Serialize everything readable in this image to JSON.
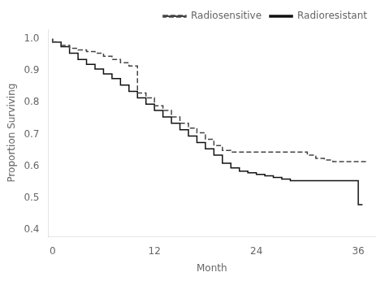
{
  "chart_data": {
    "type": "step",
    "xlabel": "Month",
    "ylabel": "Proportion Surviving",
    "xlim": [
      -0.5,
      38
    ],
    "ylim": [
      0.38,
      1.03
    ],
    "xticks": [
      0,
      12,
      24,
      36
    ],
    "yticks": [
      0.4,
      0.5,
      0.6,
      0.7,
      0.8,
      0.9,
      {
        "value": 1.0,
        "label": "1.0"
      }
    ],
    "grid": false,
    "legend": "upper right",
    "series": [
      {
        "name": "Radiosensitive",
        "color": "#444444",
        "line_style": "dashed",
        "x": [
          0,
          1,
          2,
          3,
          4,
          5,
          6,
          7,
          8,
          9,
          10,
          11,
          12,
          13,
          14,
          15,
          16,
          17,
          18,
          19,
          20,
          21,
          22,
          23,
          24,
          25,
          26,
          27,
          28,
          29,
          30,
          31,
          32,
          33,
          34,
          35,
          36,
          37
        ],
        "values": [
          1.0,
          0.99,
          0.98,
          0.97,
          0.965,
          0.96,
          0.955,
          0.945,
          0.935,
          0.925,
          0.915,
          0.83,
          0.815,
          0.79,
          0.775,
          0.755,
          0.735,
          0.72,
          0.705,
          0.685,
          0.665,
          0.65,
          0.645,
          0.645,
          0.645,
          0.645,
          0.645,
          0.645,
          0.645,
          0.645,
          0.645,
          0.635,
          0.625,
          0.62,
          0.615,
          0.615,
          0.615,
          0.615
        ]
      },
      {
        "name": "Radioresistant",
        "color": "#111111",
        "line_style": "solid",
        "x": [
          0,
          1,
          2,
          3,
          4,
          5,
          6,
          7,
          8,
          9,
          10,
          11,
          12,
          13,
          14,
          15,
          16,
          17,
          18,
          19,
          20,
          21,
          22,
          23,
          24,
          25,
          26,
          27,
          28,
          29,
          30,
          31,
          32,
          33,
          34,
          35,
          36,
          36.5
        ],
        "values": [
          1.0,
          0.99,
          0.975,
          0.955,
          0.935,
          0.92,
          0.905,
          0.89,
          0.875,
          0.855,
          0.835,
          0.815,
          0.795,
          0.775,
          0.755,
          0.735,
          0.715,
          0.695,
          0.675,
          0.655,
          0.635,
          0.61,
          0.595,
          0.585,
          0.58,
          0.575,
          0.57,
          0.565,
          0.56,
          0.555,
          0.555,
          0.555,
          0.555,
          0.555,
          0.555,
          0.555,
          0.555,
          0.48
        ]
      }
    ]
  }
}
